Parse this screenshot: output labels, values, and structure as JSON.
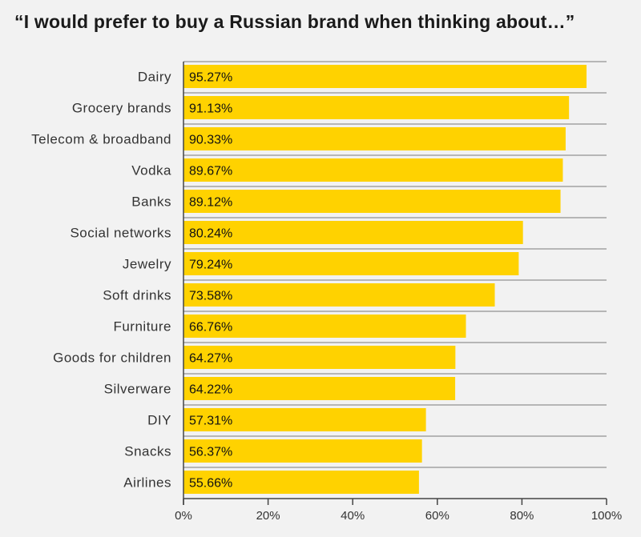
{
  "chart_data": {
    "type": "bar",
    "orientation": "horizontal",
    "title": "“I would prefer to buy a Russian brand when thinking about…”",
    "categories": [
      "Dairy",
      "Grocery brands",
      "Telecom & broadband",
      "Vodka",
      "Banks",
      "Social networks",
      "Jewelry",
      "Soft drinks",
      "Furniture",
      "Goods for children",
      "Silverware",
      "DIY",
      "Snacks",
      "Airlines"
    ],
    "values": [
      95.27,
      91.13,
      90.33,
      89.67,
      89.12,
      80.24,
      79.24,
      73.58,
      66.76,
      64.27,
      64.22,
      57.31,
      56.37,
      55.66
    ],
    "value_labels": [
      "95.27%",
      "91.13%",
      "90.33%",
      "89.67%",
      "89.12%",
      "80.24%",
      "79.24%",
      "73.58%",
      "66.76%",
      "64.27%",
      "64.22%",
      "57.31%",
      "56.37%",
      "55.66%"
    ],
    "xlim": [
      0,
      100
    ],
    "x_ticks": [
      0,
      20,
      40,
      60,
      80,
      100
    ],
    "x_tick_labels": [
      "0%",
      "20%",
      "40%",
      "60%",
      "80%",
      "100%"
    ],
    "bar_color": "#ffd200",
    "grid": true
  }
}
